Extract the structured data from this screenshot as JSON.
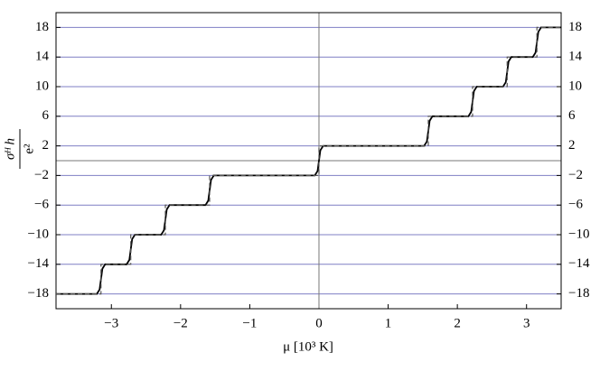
{
  "chart_data": {
    "type": "line",
    "xlabel": "μ [10³ K]",
    "ylabel_numerator": "σᴴ h",
    "ylabel_denominator": "e²",
    "xlim": [
      -3.8,
      3.5
    ],
    "ylim": [
      -20,
      20
    ],
    "xticks": [
      {
        "value": -3,
        "label": "−3"
      },
      {
        "value": -2,
        "label": "−2"
      },
      {
        "value": -1,
        "label": "−1"
      },
      0,
      1,
      2,
      3
    ],
    "yticks": [
      {
        "value": -18,
        "label": "−18"
      },
      {
        "value": -14,
        "label": "−14"
      },
      {
        "value": -10,
        "label": "−10"
      },
      {
        "value": -6,
        "label": "−6"
      },
      {
        "value": -2,
        "label": "−2"
      },
      2,
      6,
      10,
      14,
      18
    ],
    "grid": true,
    "grid_color": "#7f7fc4",
    "zero_lines": true,
    "series": [
      {
        "color": "#000000",
        "style": "solid",
        "x": [
          -3.8,
          -3.21,
          -3.17,
          -3.15,
          -3.13,
          -3.09,
          -2.78,
          -2.74,
          -2.72,
          -2.7,
          -2.66,
          -2.28,
          -2.24,
          -2.22,
          -2.2,
          -2.16,
          -1.64,
          -1.6,
          -1.58,
          -1.56,
          -1.52,
          -0.06,
          -0.02,
          0,
          0.02,
          0.06,
          1.52,
          1.56,
          1.58,
          1.6,
          1.64,
          2.16,
          2.2,
          2.22,
          2.24,
          2.28,
          2.66,
          2.7,
          2.72,
          2.74,
          2.78,
          3.09,
          3.13,
          3.15,
          3.17,
          3.21,
          3.5
        ],
        "values": [
          -18,
          -18,
          -17.4,
          -16,
          -14.6,
          -14,
          -14,
          -13.4,
          -12,
          -10.6,
          -10,
          -10,
          -9.4,
          -8,
          -6.6,
          -6,
          -6,
          -5.4,
          -4,
          -2.6,
          -2,
          -2,
          -1.4,
          0,
          1.4,
          2,
          2,
          2.6,
          4,
          5.4,
          6,
          6,
          6.6,
          8,
          9.4,
          10,
          10,
          10.6,
          12,
          13.4,
          14,
          14,
          14.6,
          16,
          17.4,
          18,
          18
        ]
      },
      {
        "color": "#555555",
        "style": "dashed",
        "x": [
          -3.8,
          -3.15,
          -3.15,
          -2.72,
          -2.72,
          -2.22,
          -2.22,
          -1.58,
          -1.58,
          0,
          0,
          1.58,
          1.58,
          2.22,
          2.22,
          2.72,
          2.72,
          3.15,
          3.15,
          3.5
        ],
        "values": [
          -18,
          -18,
          -14,
          -14,
          -10,
          -10,
          -6,
          -6,
          -2,
          -2,
          2,
          2,
          6,
          6,
          10,
          10,
          14,
          14,
          18,
          18
        ]
      }
    ]
  }
}
